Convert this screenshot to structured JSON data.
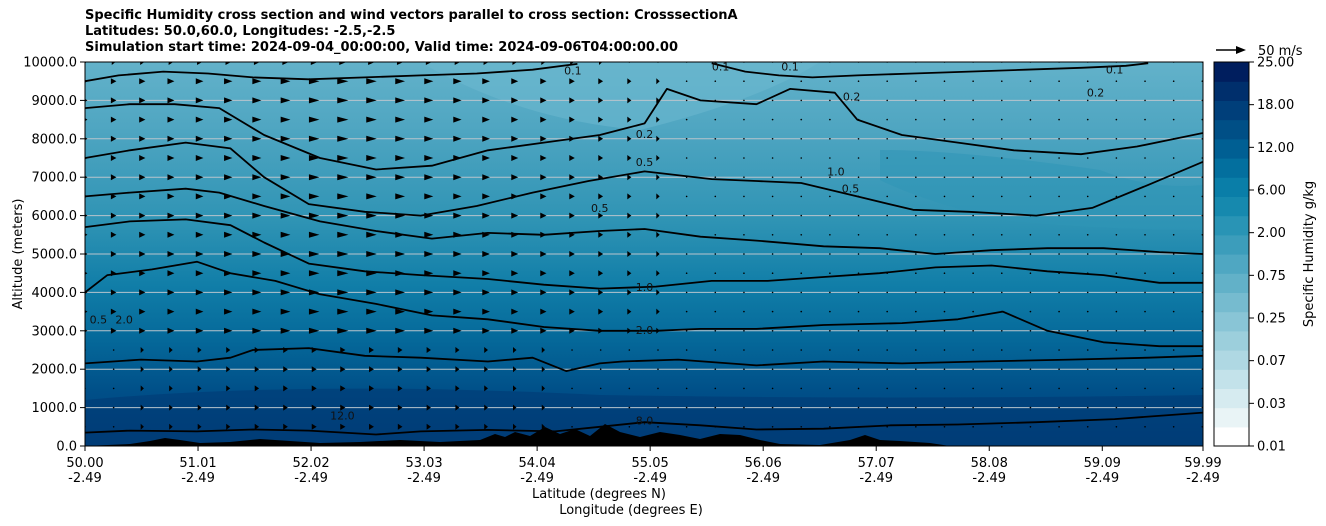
{
  "chart_data": {
    "type": "contour",
    "title_lines": [
      "Specific Humidity cross section and wind vectors parallel to cross section: CrosssectionA",
      "Latitudes: 50.0,60.0, Longitudes: -2.5,-2.5",
      "Simulation start time: 2024-09-04_00:00:00, Valid time: 2024-09-06T04:00:00.00"
    ],
    "xlabel_lines": [
      "Latitude (degrees N)",
      "Longitude (degrees E)"
    ],
    "ylabel": "Altitude (meters)",
    "x_ticks": [
      {
        "lat": "50.00",
        "lon": "-2.49",
        "value": 50.0
      },
      {
        "lat": "51.01",
        "lon": "-2.49",
        "value": 51.01
      },
      {
        "lat": "52.02",
        "lon": "-2.49",
        "value": 52.02
      },
      {
        "lat": "53.03",
        "lon": "-2.49",
        "value": 53.03
      },
      {
        "lat": "54.04",
        "lon": "-2.49",
        "value": 54.04
      },
      {
        "lat": "55.05",
        "lon": "-2.49",
        "value": 55.05
      },
      {
        "lat": "56.06",
        "lon": "-2.49",
        "value": 56.06
      },
      {
        "lat": "57.07",
        "lon": "-2.49",
        "value": 57.07
      },
      {
        "lat": "58.08",
        "lon": "-2.49",
        "value": 58.08
      },
      {
        "lat": "59.09",
        "lon": "-2.49",
        "value": 59.09
      },
      {
        "lat": "59.99",
        "lon": "-2.49",
        "value": 59.99
      }
    ],
    "xlim": [
      50.0,
      59.99
    ],
    "y_ticks": [
      "0.0",
      "1000.0",
      "2000.0",
      "3000.0",
      "4000.0",
      "5000.0",
      "6000.0",
      "7000.0",
      "8000.0",
      "9000.0",
      "10000.0"
    ],
    "ylim": [
      0,
      10000
    ],
    "grid": "horizontal",
    "colorbar": {
      "label": "Specific Humidity g/kg",
      "levels": [
        "0.01",
        "0.03",
        "0.07",
        "0.25",
        "0.75",
        "2.00",
        "6.00",
        "12.00",
        "18.00",
        "25.00"
      ],
      "colors": [
        "#ffffff",
        "#e9f4f6",
        "#d6ebf0",
        "#c3e2ea",
        "#afd8e3",
        "#9ccfdc",
        "#89c5d6",
        "#76bbcf",
        "#62b1c8",
        "#4fa7c2",
        "#3c9dbb",
        "#2994b5",
        "#1689ae",
        "#0a7ea8",
        "#036f9e",
        "#005f93",
        "#004f86",
        "#003f7a",
        "#002f6c",
        "#001e5e"
      ]
    },
    "quiver_key": {
      "label": "50 m/s"
    },
    "contour_labels": [
      {
        "text": "0.1",
        "x": 54.36,
        "y": 9780
      },
      {
        "text": "0.1",
        "x": 55.68,
        "y": 9880
      },
      {
        "text": "0.1",
        "x": 56.3,
        "y": 9880
      },
      {
        "text": "0.1",
        "x": 59.2,
        "y": 9800
      },
      {
        "text": "0.2",
        "x": 59.03,
        "y": 9200
      },
      {
        "text": "0.2",
        "x": 56.85,
        "y": 9100
      },
      {
        "text": "0.2",
        "x": 55.0,
        "y": 8120
      },
      {
        "text": "0.5",
        "x": 55.0,
        "y": 7400
      },
      {
        "text": "0.5",
        "x": 54.6,
        "y": 6200
      },
      {
        "text": "1.0",
        "x": 56.71,
        "y": 7150
      },
      {
        "text": "0.5",
        "x": 56.84,
        "y": 6700
      },
      {
        "text": "1.0",
        "x": 55.0,
        "y": 4140
      },
      {
        "text": "2.0",
        "x": 55.0,
        "y": 3020
      },
      {
        "text": "8.0",
        "x": 55.0,
        "y": 670
      },
      {
        "text": "12.0",
        "x": 52.3,
        "y": 800
      },
      {
        "text": "2.0",
        "x": 50.35,
        "y": 3300
      },
      {
        "text": "0.5",
        "x": 50.12,
        "y": 3300
      }
    ],
    "contour_lines": [
      {
        "level": "8.0",
        "points": [
          [
            50.0,
            350
          ],
          [
            50.4,
            400
          ],
          [
            51.0,
            380
          ],
          [
            51.5,
            430
          ],
          [
            52.0,
            400
          ],
          [
            52.6,
            300
          ],
          [
            53.0,
            380
          ],
          [
            53.6,
            420
          ],
          [
            54.2,
            380
          ],
          [
            54.6,
            500
          ],
          [
            55.0,
            620
          ],
          [
            55.5,
            540
          ],
          [
            56.0,
            430
          ],
          [
            56.6,
            450
          ],
          [
            57.2,
            540
          ],
          [
            57.8,
            560
          ],
          [
            58.5,
            620
          ],
          [
            59.2,
            700
          ],
          [
            59.99,
            870
          ]
        ]
      },
      {
        "level": "2.0",
        "points": [
          [
            50.0,
            2150
          ],
          [
            50.5,
            2250
          ],
          [
            51.0,
            2200
          ],
          [
            51.3,
            2300
          ],
          [
            51.5,
            2500
          ],
          [
            52.0,
            2550
          ],
          [
            52.5,
            2350
          ],
          [
            53.0,
            2300
          ],
          [
            53.6,
            2200
          ],
          [
            54.0,
            2300
          ],
          [
            54.3,
            1950
          ],
          [
            54.6,
            2150
          ],
          [
            54.8,
            2200
          ],
          [
            55.3,
            2250
          ],
          [
            56.0,
            2100
          ],
          [
            56.6,
            2200
          ],
          [
            57.3,
            2150
          ],
          [
            58.0,
            2200
          ],
          [
            58.8,
            2250
          ],
          [
            59.5,
            2300
          ],
          [
            59.99,
            2350
          ]
        ]
      },
      {
        "level": "2.0",
        "points": [
          [
            50.0,
            4000
          ],
          [
            50.2,
            4450
          ],
          [
            50.6,
            4600
          ],
          [
            51.0,
            4800
          ],
          [
            51.3,
            4500
          ],
          [
            51.7,
            4300
          ],
          [
            52.1,
            3950
          ],
          [
            52.6,
            3700
          ],
          [
            53.1,
            3400
          ],
          [
            53.6,
            3300
          ],
          [
            54.1,
            3100
          ],
          [
            54.6,
            3000
          ],
          [
            55.1,
            3000
          ],
          [
            55.5,
            3050
          ],
          [
            56.0,
            3050
          ],
          [
            56.6,
            3150
          ],
          [
            57.3,
            3200
          ],
          [
            57.8,
            3300
          ],
          [
            58.2,
            3500
          ],
          [
            58.6,
            3000
          ],
          [
            59.1,
            2700
          ],
          [
            59.6,
            2600
          ],
          [
            59.99,
            2600
          ]
        ]
      },
      {
        "level": "1.0",
        "points": [
          [
            50.0,
            5700
          ],
          [
            50.4,
            5850
          ],
          [
            50.9,
            5900
          ],
          [
            51.3,
            5750
          ],
          [
            51.6,
            5300
          ],
          [
            52.0,
            4750
          ],
          [
            52.5,
            4550
          ],
          [
            53.0,
            4450
          ],
          [
            53.6,
            4350
          ],
          [
            54.1,
            4200
          ],
          [
            54.6,
            4100
          ],
          [
            55.1,
            4150
          ],
          [
            55.6,
            4300
          ],
          [
            56.1,
            4300
          ],
          [
            56.6,
            4400
          ],
          [
            57.1,
            4500
          ],
          [
            57.6,
            4650
          ],
          [
            58.1,
            4700
          ],
          [
            58.6,
            4550
          ],
          [
            59.1,
            4450
          ],
          [
            59.6,
            4250
          ],
          [
            59.99,
            4250
          ]
        ]
      },
      {
        "level": "0.5",
        "points": [
          [
            50.0,
            6500
          ],
          [
            50.4,
            6600
          ],
          [
            50.9,
            6700
          ],
          [
            51.2,
            6600
          ],
          [
            51.6,
            6250
          ],
          [
            52.1,
            5850
          ],
          [
            52.6,
            5600
          ],
          [
            53.1,
            5400
          ],
          [
            53.6,
            5550
          ],
          [
            54.1,
            5500
          ],
          [
            54.6,
            5600
          ],
          [
            55.0,
            5650
          ],
          [
            55.5,
            5450
          ],
          [
            56.0,
            5350
          ],
          [
            56.6,
            5200
          ],
          [
            57.1,
            5150
          ],
          [
            57.6,
            5000
          ],
          [
            58.1,
            5100
          ],
          [
            58.6,
            5150
          ],
          [
            59.1,
            5150
          ],
          [
            59.6,
            5050
          ],
          [
            59.99,
            5000
          ]
        ]
      },
      {
        "level": "0.5",
        "points": [
          [
            50.0,
            7500
          ],
          [
            50.4,
            7700
          ],
          [
            50.9,
            7900
          ],
          [
            51.3,
            7750
          ],
          [
            51.6,
            7000
          ],
          [
            52.0,
            6300
          ],
          [
            52.5,
            6100
          ],
          [
            53.0,
            6000
          ],
          [
            53.5,
            6250
          ],
          [
            54.0,
            6600
          ],
          [
            54.5,
            6900
          ],
          [
            55.0,
            7150
          ],
          [
            55.6,
            6950
          ],
          [
            56.0,
            6900
          ],
          [
            56.4,
            6850
          ],
          [
            56.9,
            6500
          ],
          [
            57.4,
            6150
          ],
          [
            57.9,
            6100
          ],
          [
            58.5,
            6000
          ],
          [
            59.0,
            6200
          ],
          [
            59.5,
            6800
          ],
          [
            59.99,
            7400
          ]
        ]
      },
      {
        "level": "0.2",
        "points": [
          [
            50.0,
            8800
          ],
          [
            50.4,
            8900
          ],
          [
            50.8,
            8900
          ],
          [
            51.2,
            8800
          ],
          [
            51.6,
            8100
          ],
          [
            52.1,
            7500
          ],
          [
            52.6,
            7200
          ],
          [
            53.1,
            7300
          ],
          [
            53.6,
            7700
          ],
          [
            54.1,
            7900
          ],
          [
            54.6,
            8100
          ],
          [
            55.0,
            8400
          ],
          [
            55.2,
            9300
          ],
          [
            55.5,
            9000
          ],
          [
            56.0,
            8900
          ],
          [
            56.3,
            9300
          ],
          [
            56.7,
            9200
          ],
          [
            56.9,
            8500
          ],
          [
            57.3,
            8100
          ],
          [
            57.8,
            7900
          ],
          [
            58.3,
            7700
          ],
          [
            58.9,
            7600
          ],
          [
            59.4,
            7800
          ],
          [
            59.99,
            8150
          ]
        ]
      },
      {
        "level": "0.1",
        "points": [
          [
            50.0,
            9500
          ],
          [
            50.3,
            9650
          ],
          [
            50.7,
            9750
          ],
          [
            51.1,
            9700
          ],
          [
            51.5,
            9600
          ],
          [
            52.0,
            9550
          ],
          [
            52.5,
            9600
          ],
          [
            53.0,
            9650
          ],
          [
            53.5,
            9700
          ],
          [
            54.0,
            9800
          ],
          [
            54.4,
            9950
          ]
        ]
      },
      {
        "level": "0.1",
        "points": [
          [
            55.6,
            9970
          ],
          [
            55.9,
            9750
          ],
          [
            56.2,
            9650
          ],
          [
            56.5,
            9600
          ],
          [
            56.9,
            9650
          ],
          [
            57.4,
            9700
          ],
          [
            57.9,
            9750
          ],
          [
            58.4,
            9800
          ],
          [
            58.9,
            9850
          ],
          [
            59.3,
            9900
          ],
          [
            59.5,
            9970
          ]
        ]
      }
    ]
  }
}
